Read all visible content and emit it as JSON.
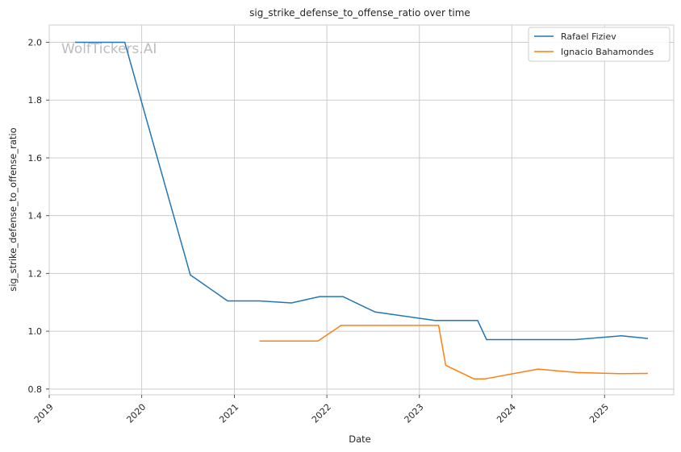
{
  "chart_data": {
    "type": "line",
    "title": "sig_strike_defense_to_offense_ratio over time",
    "xlabel": "Date",
    "ylabel": "sig_strike_defense_to_offense_ratio",
    "watermark": "WolfTickers.AI",
    "grid": true,
    "legend_position": "top-right",
    "xlim": [
      "2019-01-01",
      "2025-10-01"
    ],
    "ylim": [
      0.78,
      2.06
    ],
    "x_ticks": [
      {
        "date": "2019-01-01",
        "label": "2019"
      },
      {
        "date": "2020-01-01",
        "label": "2020"
      },
      {
        "date": "2021-01-01",
        "label": "2021"
      },
      {
        "date": "2022-01-01",
        "label": "2022"
      },
      {
        "date": "2023-01-01",
        "label": "2023"
      },
      {
        "date": "2024-01-01",
        "label": "2024"
      },
      {
        "date": "2025-01-01",
        "label": "2025"
      }
    ],
    "y_ticks": [
      {
        "value": 0.8,
        "label": "0.8"
      },
      {
        "value": 1.0,
        "label": "1.0"
      },
      {
        "value": 1.2,
        "label": "1.2"
      },
      {
        "value": 1.4,
        "label": "1.4"
      },
      {
        "value": 1.6,
        "label": "1.6"
      },
      {
        "value": 1.8,
        "label": "1.8"
      },
      {
        "value": 2.0,
        "label": "2.0"
      }
    ],
    "series": [
      {
        "name": "Rafael Fiziev",
        "color": "#1f77b4",
        "points": [
          {
            "x": "2019-04-13",
            "y": 2.0
          },
          {
            "x": "2019-10-26",
            "y": 2.0
          },
          {
            "x": "2020-07-11",
            "y": 1.195
          },
          {
            "x": "2020-12-05",
            "y": 1.105
          },
          {
            "x": "2021-04-10",
            "y": 1.105
          },
          {
            "x": "2021-08-14",
            "y": 1.098
          },
          {
            "x": "2021-12-04",
            "y": 1.12
          },
          {
            "x": "2022-03-05",
            "y": 1.12
          },
          {
            "x": "2022-07-09",
            "y": 1.067
          },
          {
            "x": "2023-03-04",
            "y": 1.037
          },
          {
            "x": "2023-08-19",
            "y": 1.037
          },
          {
            "x": "2023-09-23",
            "y": 0.971
          },
          {
            "x": "2024-09-07",
            "y": 0.971
          },
          {
            "x": "2025-03-08",
            "y": 0.984
          },
          {
            "x": "2025-06-21",
            "y": 0.975
          }
        ]
      },
      {
        "name": "Ignacio Bahamondes",
        "color": "#ff7f0e",
        "points": [
          {
            "x": "2021-04-10",
            "y": 0.966
          },
          {
            "x": "2021-08-14",
            "y": 0.966
          },
          {
            "x": "2021-11-27",
            "y": 0.966
          },
          {
            "x": "2022-02-26",
            "y": 1.02
          },
          {
            "x": "2023-03-18",
            "y": 1.02
          },
          {
            "x": "2023-04-15",
            "y": 0.882
          },
          {
            "x": "2023-08-05",
            "y": 0.835
          },
          {
            "x": "2023-09-16",
            "y": 0.835
          },
          {
            "x": "2024-04-13",
            "y": 0.869
          },
          {
            "x": "2024-09-14",
            "y": 0.857
          },
          {
            "x": "2025-03-01",
            "y": 0.853
          },
          {
            "x": "2025-06-21",
            "y": 0.854
          }
        ]
      }
    ]
  }
}
